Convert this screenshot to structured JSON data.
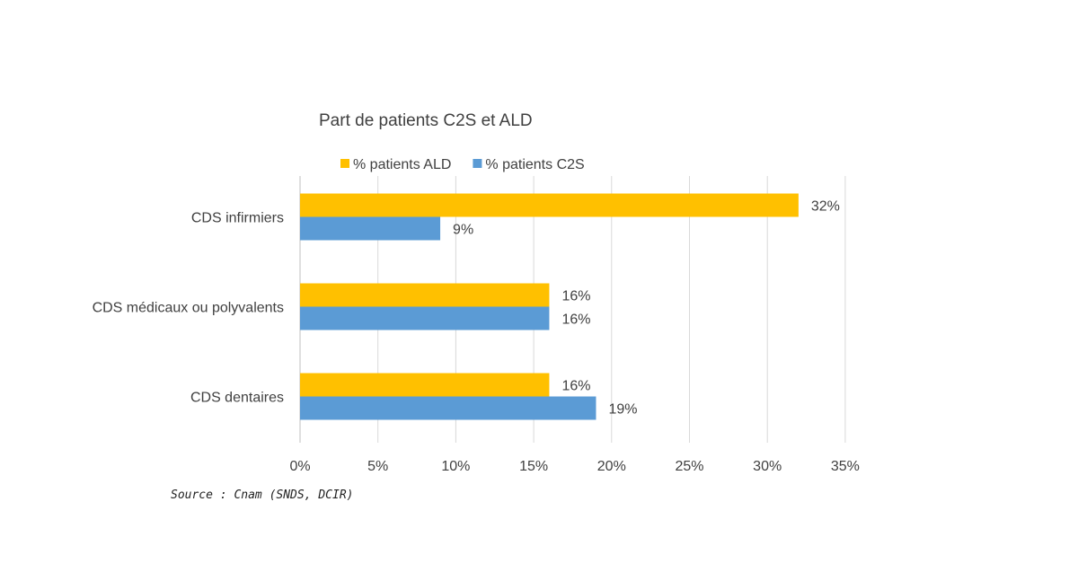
{
  "chart_data": {
    "type": "bar",
    "orientation": "horizontal",
    "title": "Part de patients C2S et ALD",
    "categories": [
      "CDS infirmiers",
      "CDS médicaux ou polyvalents",
      "CDS dentaires"
    ],
    "series": [
      {
        "name": "% patients ALD",
        "color": "#FFC000",
        "values": [
          32,
          16,
          16
        ],
        "labels": [
          "32%",
          "16%",
          "16%"
        ]
      },
      {
        "name": "% patients C2S",
        "color": "#5B9BD5",
        "values": [
          9,
          16,
          19
        ],
        "labels": [
          "9%",
          "16%",
          "19%"
        ]
      }
    ],
    "xlim": [
      0,
      35
    ],
    "xticks": [
      0,
      5,
      10,
      15,
      20,
      25,
      30,
      35
    ],
    "xtick_labels": [
      "0%",
      "5%",
      "10%",
      "15%",
      "20%",
      "25%",
      "30%",
      "35%"
    ],
    "grid": "vertical",
    "legend_position": "top"
  },
  "source": "Source : Cnam (SNDS, DCIR)"
}
